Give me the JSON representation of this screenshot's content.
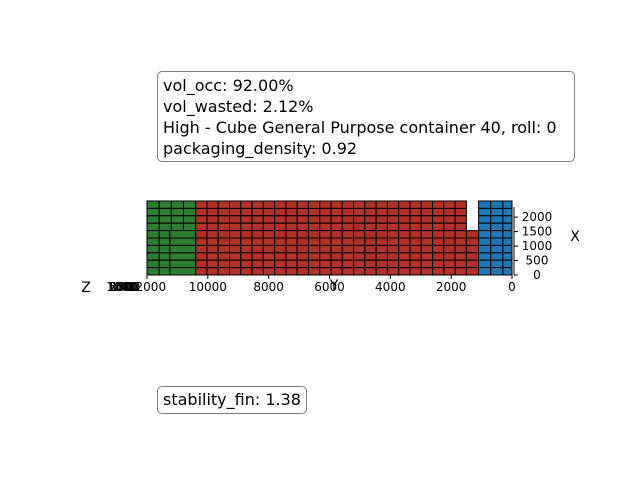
{
  "info_box": {
    "lines": [
      "vol_occ: 92.00%",
      "vol_wasted: 2.12%",
      "High - Cube General Purpose container 40, roll: 0",
      "packaging_density: 0.92"
    ]
  },
  "stability_box": {
    "text": "stability_fin: 1.38"
  },
  "chart_data": {
    "type": "3d-box-packing",
    "axes": {
      "y": {
        "label": "Y",
        "ticks": [
          12000,
          10000,
          8000,
          6000,
          4000,
          2000,
          0
        ],
        "range": [
          12000,
          0
        ]
      },
      "x": {
        "label": "X",
        "ticks": [
          0,
          500,
          1000,
          1500,
          2000
        ],
        "range": [
          0,
          2350
        ]
      },
      "z": {
        "label": "Z",
        "ticks": [
          0,
          500,
          1000,
          1500,
          2000,
          2500
        ],
        "tick_labels": [
          "0",
          "500",
          "1000",
          "1500",
          "2000",
          "2500"
        ]
      }
    },
    "colors": {
      "green": "#2e7d32",
      "red": "#b0302a",
      "blue": "#1f77b4",
      "edge": "#000000"
    },
    "box_groups": [
      {
        "color": "green",
        "y_start": 12000,
        "y_end": 10400,
        "cols": 4,
        "rows": 10
      },
      {
        "color": "red",
        "y_start": 10400,
        "y_end": 1500,
        "cols": 24,
        "rows": 10
      },
      {
        "color": "green",
        "y_start": 11250,
        "y_end": 10400,
        "cols": 1,
        "rows": 6,
        "row_offset": 4
      },
      {
        "color": "red",
        "y_start": 1500,
        "y_end": 1100,
        "cols": 1,
        "rows": 6,
        "row_offset": 4
      },
      {
        "color": "blue",
        "y_start": 1100,
        "y_end": 300,
        "cols": 2,
        "rows": 10
      },
      {
        "color": "blue",
        "y_start": 300,
        "y_end": 0,
        "cols": 1,
        "rows": 10
      }
    ]
  }
}
